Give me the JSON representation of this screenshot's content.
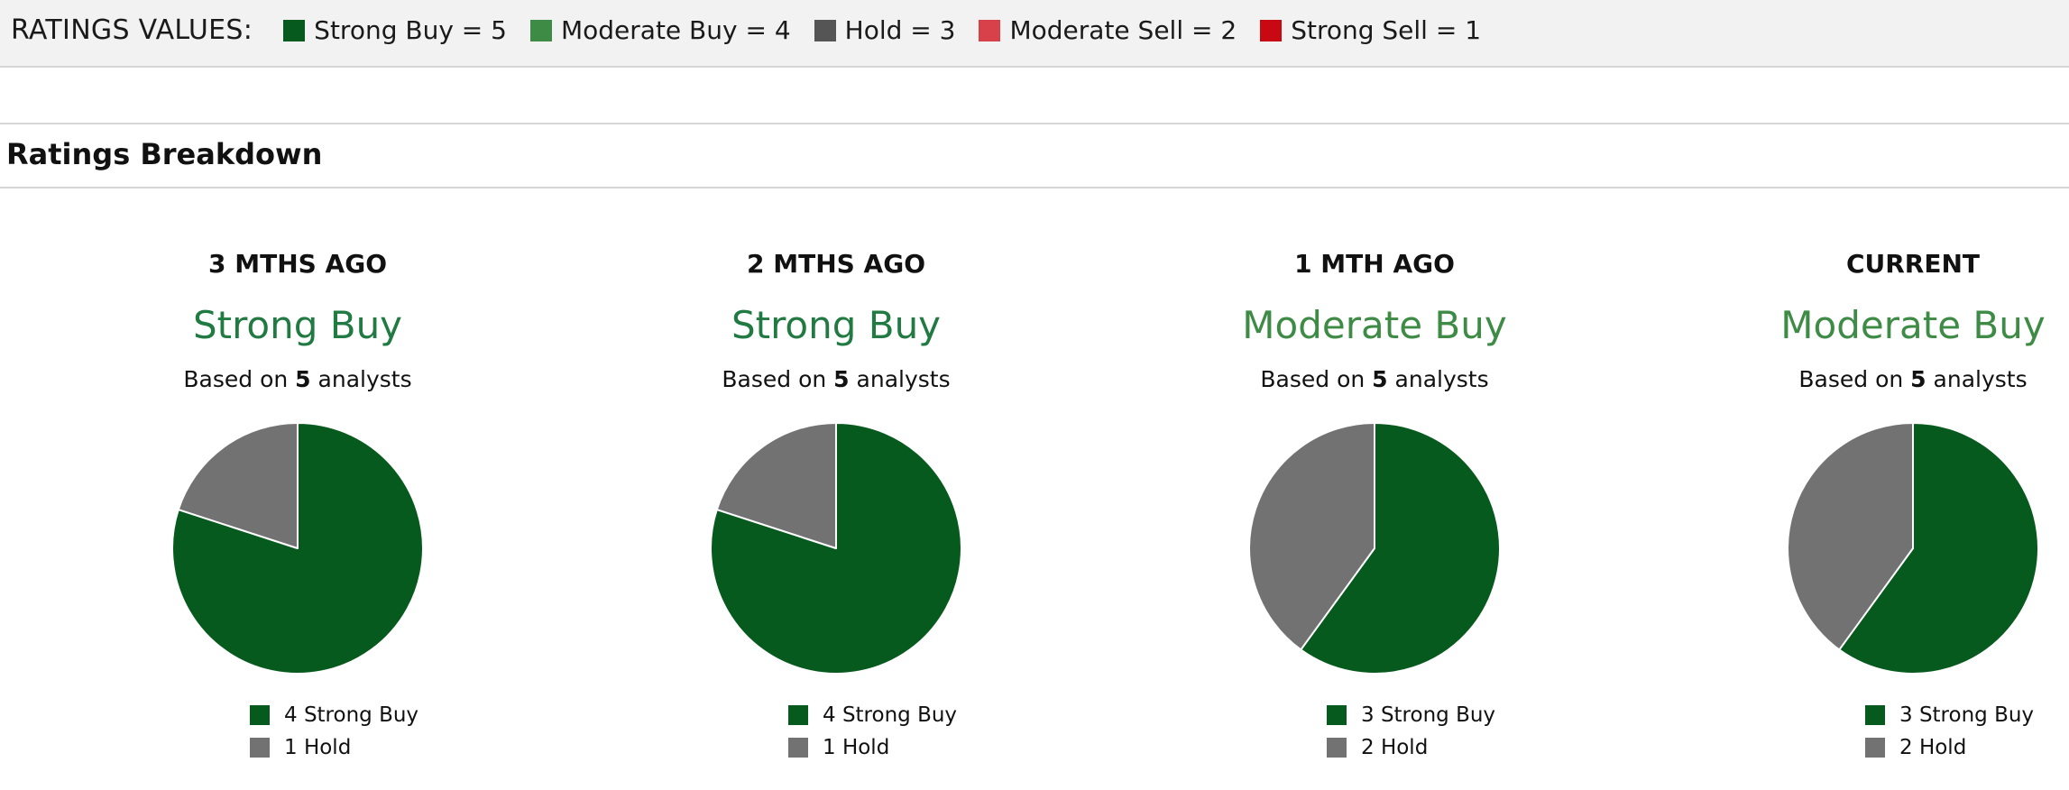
{
  "ratings_legend": {
    "title": "RATINGS VALUES:",
    "items": [
      {
        "label": "Strong Buy = 5",
        "color": "#075a1e",
        "icon": "strong-buy-swatch"
      },
      {
        "label": "Moderate Buy = 4",
        "color": "#3e8b45",
        "icon": "moderate-buy-swatch"
      },
      {
        "label": "Hold = 3",
        "color": "#555555",
        "icon": "hold-swatch"
      },
      {
        "label": "Moderate Sell = 2",
        "color": "#d9414a",
        "icon": "moderate-sell-swatch"
      },
      {
        "label": "Strong Sell = 1",
        "color": "#c80813",
        "icon": "strong-sell-swatch"
      }
    ]
  },
  "section": {
    "title": "Ratings Breakdown"
  },
  "chart_data": [
    {
      "type": "pie",
      "title": "3 MTHS AGO",
      "consensus": "Strong Buy",
      "consensus_color": "#207a42",
      "based_prefix": "Based on ",
      "analysts": "5",
      "based_suffix": " analysts",
      "series": [
        {
          "name": "Strong Buy",
          "value": 4,
          "label": "4 Strong Buy",
          "color": "#075a1e"
        },
        {
          "name": "Hold",
          "value": 1,
          "label": "1 Hold",
          "color": "#727272"
        }
      ]
    },
    {
      "type": "pie",
      "title": "2 MTHS AGO",
      "consensus": "Strong Buy",
      "consensus_color": "#207a42",
      "based_prefix": "Based on ",
      "analysts": "5",
      "based_suffix": " analysts",
      "series": [
        {
          "name": "Strong Buy",
          "value": 4,
          "label": "4 Strong Buy",
          "color": "#075a1e"
        },
        {
          "name": "Hold",
          "value": 1,
          "label": "1 Hold",
          "color": "#727272"
        }
      ]
    },
    {
      "type": "pie",
      "title": "1 MTH AGO",
      "consensus": "Moderate Buy",
      "consensus_color": "#3e8b45",
      "based_prefix": "Based on ",
      "analysts": "5",
      "based_suffix": " analysts",
      "series": [
        {
          "name": "Strong Buy",
          "value": 3,
          "label": "3 Strong Buy",
          "color": "#075a1e"
        },
        {
          "name": "Hold",
          "value": 2,
          "label": "2 Hold",
          "color": "#727272"
        }
      ]
    },
    {
      "type": "pie",
      "title": "CURRENT",
      "consensus": "Moderate Buy",
      "consensus_color": "#3e8b45",
      "based_prefix": "Based on ",
      "analysts": "5",
      "based_suffix": " analysts",
      "series": [
        {
          "name": "Strong Buy",
          "value": 3,
          "label": "3 Strong Buy",
          "color": "#075a1e"
        },
        {
          "name": "Hold",
          "value": 2,
          "label": "2 Hold",
          "color": "#727272"
        }
      ]
    }
  ]
}
